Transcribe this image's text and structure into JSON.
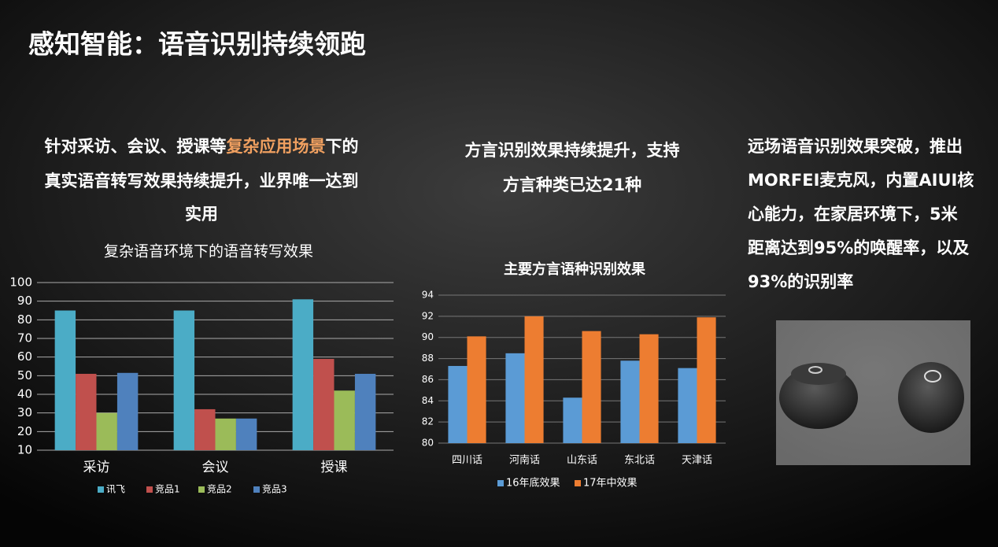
{
  "title": "感知智能：语音识别持续领跑",
  "left_text": {
    "line1": [
      "针对采访、会议、授课等",
      "复杂应用场景",
      "下的"
    ],
    "line2": "真实语音转写效果持续提升，业界唯一达到",
    "line3": "实用"
  },
  "middle_text": [
    "方言识别效果持续提升，支持",
    "方言种类已达21种"
  ],
  "right_text": [
    "远场语音识别效果突破，推出",
    "MORFEI麦克风，内置AIUI核",
    "心能力，在家居环境下，5米",
    "距离达到95%的唤醒率，以及",
    "93%的识别率"
  ],
  "chart_data": [
    {
      "type": "bar",
      "title": "复杂语音环境下的语音转写效果",
      "categories": [
        "采访",
        "会议",
        "授课"
      ],
      "series": [
        {
          "name": "讯飞",
          "color": "#4bacc6",
          "values": [
            85,
            85,
            91
          ]
        },
        {
          "name": "竞品1",
          "color": "#c0504d",
          "values": [
            51,
            32,
            59
          ]
        },
        {
          "name": "竞品2",
          "color": "#9bbb59",
          "values": [
            30,
            27,
            42
          ]
        },
        {
          "name": "竞品3",
          "color": "#4f81bd",
          "values": [
            51.5,
            27,
            51
          ]
        }
      ],
      "ylim": [
        10,
        100
      ],
      "yticks": [
        10,
        20,
        30,
        40,
        50,
        60,
        70,
        80,
        90,
        100
      ],
      "grid": true,
      "legend": "bottom"
    },
    {
      "type": "bar",
      "title": "主要方言语种识别效果",
      "categories": [
        "四川话",
        "河南话",
        "山东话",
        "东北话",
        "天津话"
      ],
      "series": [
        {
          "name": "16年底效果",
          "color": "#5b9bd5",
          "values": [
            87.3,
            88.5,
            84.3,
            87.8,
            87.1
          ]
        },
        {
          "name": "17年中效果",
          "color": "#ed7d31",
          "values": [
            90.1,
            92,
            90.6,
            90.3,
            91.9
          ]
        }
      ],
      "ylim": [
        80,
        94
      ],
      "yticks": [
        80,
        82,
        84,
        86,
        88,
        90,
        92,
        94
      ],
      "grid": true,
      "legend": "bottom"
    }
  ]
}
